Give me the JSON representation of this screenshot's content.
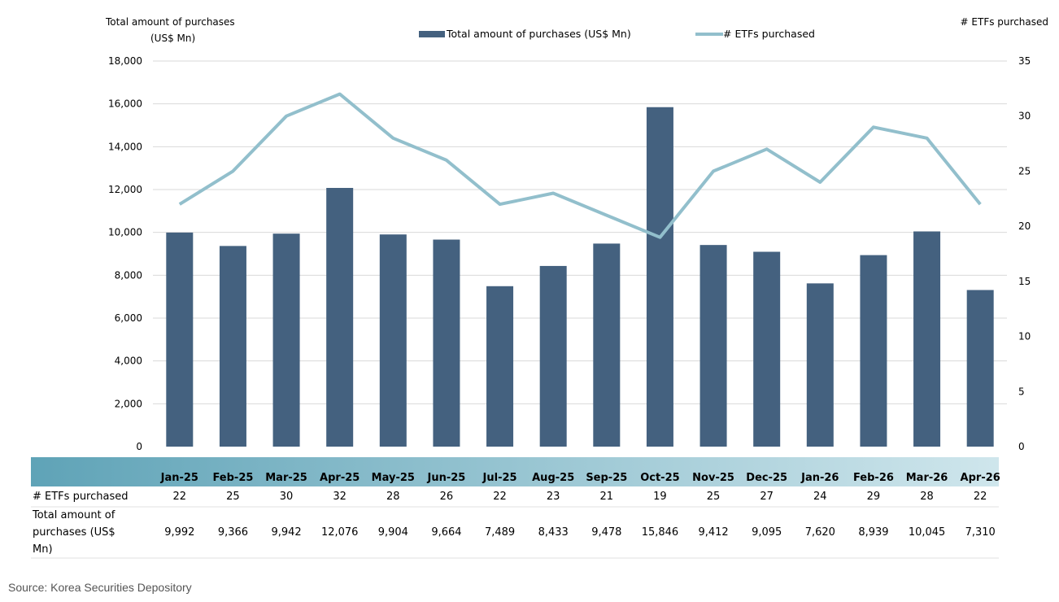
{
  "chart_data": {
    "type": "bar",
    "categories": [
      "Jan-25",
      "Feb-25",
      "Mar-25",
      "Apr-25",
      "May-25",
      "Jun-25",
      "Jul-25",
      "Aug-25",
      "Sep-25",
      "Oct-25",
      "Nov-25",
      "Dec-25",
      "Jan-26",
      "Feb-26",
      "Mar-26",
      "Apr-26"
    ],
    "series": [
      {
        "name": "Total amount of purchases (US$ Mn)",
        "type": "bar",
        "axis": "left",
        "color": "#44617f",
        "values": [
          9992,
          9366,
          9942,
          12076,
          9904,
          9664,
          7489,
          8433,
          9478,
          15846,
          9412,
          9095,
          7620,
          8939,
          10045,
          7310
        ]
      },
      {
        "name": "# ETFs purchased",
        "type": "line",
        "axis": "right",
        "color": "#92bfcc",
        "values": [
          22,
          25,
          30,
          32,
          28,
          26,
          22,
          23,
          21,
          19,
          25,
          27,
          24,
          29,
          28,
          22
        ]
      }
    ],
    "ylabel_left_line1": "Total amount of purchases",
    "ylabel_left_line2": "(US$ Mn)",
    "ylabel_right": "# ETFs purchased",
    "ylim_left": [
      0,
      18000
    ],
    "ylim_right": [
      0,
      35
    ],
    "yticks_left": [
      "0",
      "2,000",
      "4,000",
      "6,000",
      "8,000",
      "10,000",
      "12,000",
      "14,000",
      "16,000",
      "18,000"
    ],
    "yticks_right": [
      "0",
      "5",
      "10",
      "15",
      "20",
      "25",
      "30",
      "35"
    ],
    "grid": true,
    "legend_position": "top-center"
  },
  "table": {
    "row1_label": "# ETFs purchased",
    "row1_values": [
      "22",
      "25",
      "30",
      "32",
      "28",
      "26",
      "22",
      "23",
      "21",
      "19",
      "25",
      "27",
      "24",
      "29",
      "28",
      "22"
    ],
    "row2_label_lines": [
      "Total amount of",
      "purchases (US$",
      "Mn)"
    ],
    "row2_values": [
      "9,992",
      "9,366",
      "9,942",
      "12,076",
      "9,904",
      "9,664",
      "7,489",
      "8,433",
      "9,478",
      "15,846",
      "9,412",
      "9,095",
      "7,620",
      "8,939",
      "10,045",
      "7,310"
    ]
  },
  "source": "Source: Korea Securities Depository",
  "colors": {
    "bar": "#44617f",
    "line": "#92bfcc",
    "band_start": "#5fa3b7",
    "band_end": "#cfe6ec",
    "grid": "#d9d9d9"
  }
}
